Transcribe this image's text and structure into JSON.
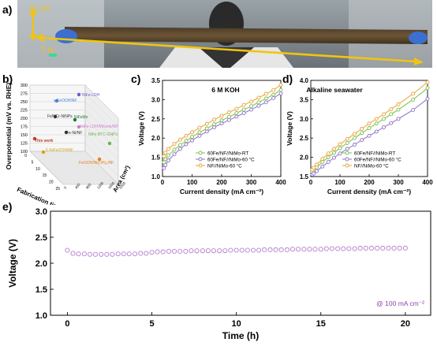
{
  "panels": {
    "a": "a)",
    "b": "b)",
    "c": "c)",
    "d": "d)",
    "e": "e)"
  },
  "photo": {
    "width_label": "10 cm",
    "length_label": "2 m"
  },
  "chart_data": [
    {
      "id": "b",
      "type": "scatter",
      "xlabel": "Fabrication time (h)",
      "ylabel": "Overpotential (mV vs. RHE)",
      "zlabel": "Area (cm²)",
      "y_ticks": [
        "300",
        "275",
        "250",
        "225",
        "200",
        "175",
        "150",
        "125",
        "100"
      ],
      "x_ticks": [
        "0",
        "5",
        "10",
        "15",
        "20",
        "25"
      ],
      "z_ticks": [
        "0",
        "200",
        "400",
        "600",
        "800",
        "1000",
        "1200",
        "1400",
        "1600",
        "1800",
        "2000"
      ],
      "points": [
        {
          "label": "NiFe-LDH",
          "color": "#6a5acd"
        },
        {
          "label": "γ-FeOOH/NF",
          "color": "#4f7fd6"
        },
        {
          "label": "FeNiCr-NiNPs",
          "color": "#333333"
        },
        {
          "label": "NiFeMo",
          "color": "#1a7a3a"
        },
        {
          "label": "NiFe-LDH/MXene/NF",
          "color": "#d07ad0"
        },
        {
          "label": "Fe-Ni/NF",
          "color": "#333333"
        },
        {
          "label": "NiFe BTC-GNPs",
          "color": "#6ab04c"
        },
        {
          "label": "This work",
          "color": "#c0392b"
        },
        {
          "label": "E-NiFeOOH/NF",
          "color": "#d4a017"
        },
        {
          "label": "FeOOH/Ni(OH)₂/NF",
          "color": "#e67e22"
        }
      ]
    },
    {
      "id": "c",
      "type": "line",
      "title": "6 M KOH",
      "xlabel": "Current density (mA cm⁻²)",
      "ylabel": "Voltage (V)",
      "xlim": [
        0,
        400
      ],
      "ylim": [
        1.0,
        3.5
      ],
      "x_ticks": [
        0,
        100,
        200,
        300,
        400
      ],
      "y_ticks": [
        1.0,
        1.5,
        2.0,
        2.5,
        3.0,
        3.5
      ],
      "x": [
        5,
        10,
        20,
        40,
        60,
        80,
        100,
        125,
        150,
        175,
        200,
        225,
        250,
        275,
        300,
        325,
        350,
        375,
        400
      ],
      "series": [
        {
          "name": "60Fe/NF//NiMo-RT",
          "color": "#77c043",
          "values": [
            1.37,
            1.45,
            1.55,
            1.7,
            1.82,
            1.93,
            2.03,
            2.15,
            2.25,
            2.36,
            2.46,
            2.55,
            2.65,
            2.74,
            2.83,
            2.93,
            3.03,
            3.13,
            3.25
          ]
        },
        {
          "name": "60Fe/NF//NiMo-60 °C",
          "color": "#8e6fc9",
          "values": [
            1.22,
            1.3,
            1.42,
            1.58,
            1.72,
            1.84,
            1.94,
            2.06,
            2.17,
            2.28,
            2.38,
            2.47,
            2.56,
            2.65,
            2.74,
            2.84,
            2.93,
            3.04,
            3.16
          ]
        },
        {
          "name": "NF//NiMo-60 °C",
          "color": "#e8a23a",
          "values": [
            1.53,
            1.62,
            1.72,
            1.85,
            1.96,
            2.06,
            2.15,
            2.27,
            2.37,
            2.48,
            2.58,
            2.67,
            2.76,
            2.86,
            2.95,
            3.05,
            3.15,
            3.25,
            3.38
          ]
        }
      ]
    },
    {
      "id": "d",
      "type": "line",
      "title": "Alkaline seawater",
      "xlabel": "Current density (mA cm⁻²)",
      "ylabel": "Voltage (V)",
      "xlim": [
        0,
        400
      ],
      "ylim": [
        1.5,
        4.0
      ],
      "x_ticks": [
        0,
        100,
        200,
        300,
        400
      ],
      "y_ticks": [
        1.5,
        2.0,
        2.5,
        3.0,
        3.5,
        4.0
      ],
      "x": [
        5,
        10,
        20,
        40,
        60,
        80,
        100,
        125,
        150,
        175,
        200,
        225,
        250,
        275,
        300,
        350,
        400
      ],
      "series": [
        {
          "name": "60Fe/NF//NiMo-RT",
          "color": "#77c043",
          "values": [
            1.62,
            1.67,
            1.74,
            1.88,
            2.0,
            2.12,
            2.24,
            2.37,
            2.5,
            2.63,
            2.76,
            2.88,
            3.0,
            3.12,
            3.24,
            3.5,
            3.8
          ]
        },
        {
          "name": "60Fe/NF//NiMo-60 °C",
          "color": "#8e6fc9",
          "values": [
            1.55,
            1.58,
            1.64,
            1.76,
            1.88,
            1.99,
            2.1,
            2.22,
            2.33,
            2.45,
            2.56,
            2.67,
            2.78,
            2.89,
            3.0,
            3.23,
            3.52
          ]
        },
        {
          "name": "NF//NiMo-60 °C",
          "color": "#e8a23a",
          "values": [
            1.68,
            1.73,
            1.81,
            1.96,
            2.1,
            2.22,
            2.34,
            2.48,
            2.61,
            2.74,
            2.88,
            3.0,
            3.12,
            3.25,
            3.38,
            3.65,
            3.95
          ]
        }
      ]
    },
    {
      "id": "e",
      "type": "scatter",
      "xlabel": "Time (h)",
      "ylabel": "Voltage (V)",
      "xlim": [
        -1,
        21.5
      ],
      "ylim": [
        1.0,
        3.0
      ],
      "x_ticks": [
        0,
        5,
        10,
        15,
        20
      ],
      "y_ticks": [
        1.0,
        1.5,
        2.0,
        2.5,
        3.0
      ],
      "annotation": "@ 100 mA cm⁻²",
      "color": "#b57fd1",
      "x": [
        0,
        0.33,
        0.66,
        1,
        1.33,
        1.66,
        2,
        2.33,
        2.66,
        3,
        3.33,
        3.66,
        4,
        4.33,
        4.66,
        5,
        5.33,
        5.66,
        6,
        6.33,
        6.66,
        7,
        7.33,
        7.66,
        8,
        8.33,
        8.66,
        9,
        9.33,
        9.66,
        10,
        10.33,
        10.66,
        11,
        11.33,
        11.66,
        12,
        12.33,
        12.66,
        13,
        13.33,
        13.66,
        14,
        14.33,
        14.66,
        15,
        15.33,
        15.66,
        16,
        16.33,
        16.66,
        17,
        17.33,
        17.66,
        18,
        18.33,
        18.66,
        19,
        19.33,
        19.66,
        20
      ],
      "values": [
        2.25,
        2.19,
        2.18,
        2.18,
        2.17,
        2.17,
        2.17,
        2.17,
        2.17,
        2.18,
        2.18,
        2.18,
        2.18,
        2.19,
        2.19,
        2.21,
        2.22,
        2.22,
        2.23,
        2.23,
        2.23,
        2.23,
        2.24,
        2.24,
        2.24,
        2.24,
        2.24,
        2.24,
        2.24,
        2.25,
        2.25,
        2.25,
        2.25,
        2.25,
        2.25,
        2.26,
        2.26,
        2.26,
        2.26,
        2.26,
        2.27,
        2.27,
        2.27,
        2.27,
        2.27,
        2.27,
        2.28,
        2.28,
        2.28,
        2.28,
        2.28,
        2.28,
        2.29,
        2.29,
        2.29,
        2.29,
        2.29,
        2.29,
        2.29,
        2.29,
        2.29
      ]
    }
  ]
}
